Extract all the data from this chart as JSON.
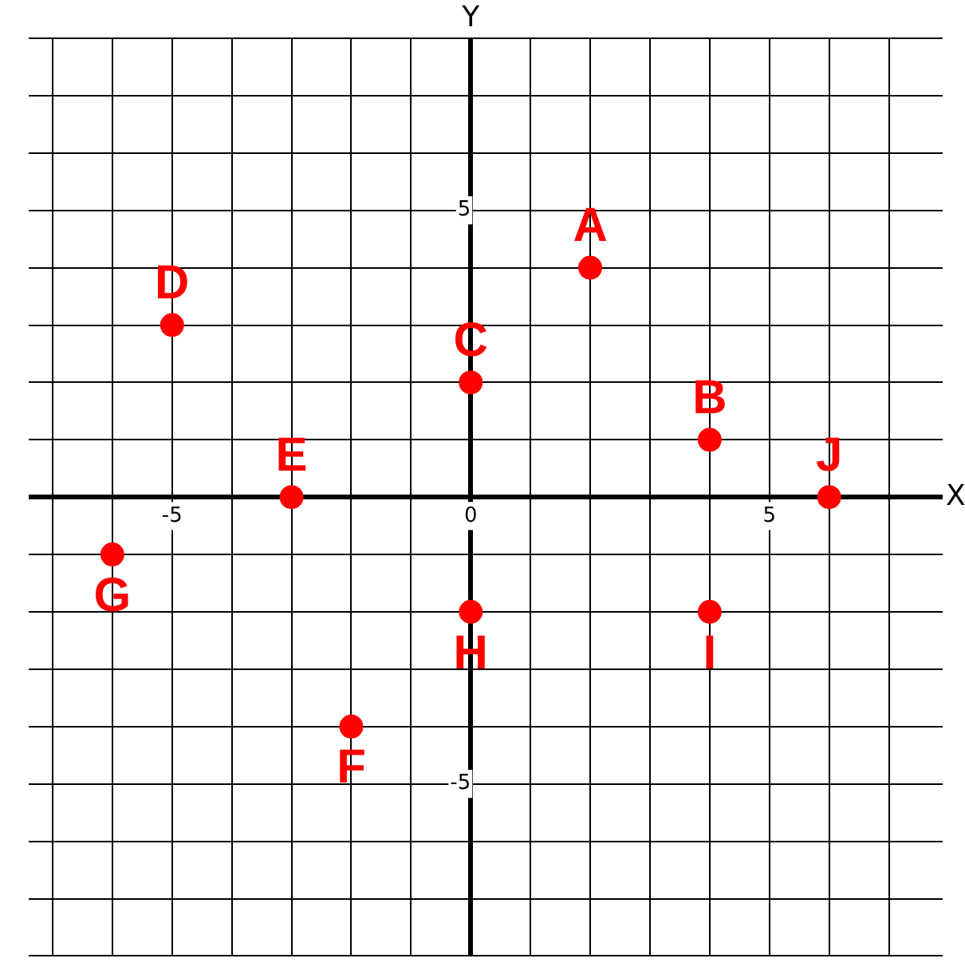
{
  "chart_data": {
    "type": "scatter",
    "xlabel": "X",
    "ylabel": "Y",
    "xlim": [
      -7.4,
      7.9
    ],
    "ylim": [
      -8,
      8
    ],
    "xticks": [
      {
        "value": -7,
        "label": null
      },
      {
        "value": -6,
        "label": null
      },
      {
        "value": -5,
        "label": "-5"
      },
      {
        "value": -4,
        "label": null
      },
      {
        "value": -3,
        "label": null
      },
      {
        "value": -2,
        "label": null
      },
      {
        "value": -1,
        "label": null
      },
      {
        "value": 0,
        "label": "0"
      },
      {
        "value": 1,
        "label": null
      },
      {
        "value": 2,
        "label": null
      },
      {
        "value": 3,
        "label": null
      },
      {
        "value": 4,
        "label": null
      },
      {
        "value": 5,
        "label": "5"
      },
      {
        "value": 6,
        "label": null
      },
      {
        "value": 7,
        "label": null
      }
    ],
    "yticks": [
      {
        "value": -8,
        "label": null
      },
      {
        "value": -7,
        "label": null
      },
      {
        "value": -6,
        "label": null
      },
      {
        "value": -5,
        "label": "-5"
      },
      {
        "value": -4,
        "label": null
      },
      {
        "value": -3,
        "label": null
      },
      {
        "value": -2,
        "label": null
      },
      {
        "value": -1,
        "label": null
      },
      {
        "value": 0,
        "label": null
      },
      {
        "value": 1,
        "label": null
      },
      {
        "value": 2,
        "label": null
      },
      {
        "value": 3,
        "label": null
      },
      {
        "value": 4,
        "label": null
      },
      {
        "value": 5,
        "label": "5"
      },
      {
        "value": 6,
        "label": null
      },
      {
        "value": 7,
        "label": null
      },
      {
        "value": 8,
        "label": null
      }
    ],
    "grid": true,
    "marker": "circle",
    "legend": false,
    "series": [
      {
        "name": "A",
        "color": "#ff0000",
        "x": [
          2
        ],
        "values": [
          4
        ]
      },
      {
        "name": "B",
        "color": "#ff0000",
        "x": [
          4
        ],
        "values": [
          1
        ]
      },
      {
        "name": "C",
        "color": "#ff0000",
        "x": [
          0
        ],
        "values": [
          2
        ]
      },
      {
        "name": "D",
        "color": "#ff0000",
        "x": [
          -5
        ],
        "values": [
          3
        ]
      },
      {
        "name": "E",
        "color": "#ff0000",
        "x": [
          -3
        ],
        "values": [
          0
        ]
      },
      {
        "name": "F",
        "color": "#ff0000",
        "x": [
          -2
        ],
        "values": [
          -4
        ]
      },
      {
        "name": "G",
        "color": "#ff0000",
        "x": [
          -6
        ],
        "values": [
          -1
        ]
      },
      {
        "name": "H",
        "color": "#ff0000",
        "x": [
          0
        ],
        "values": [
          -2
        ]
      },
      {
        "name": "I",
        "color": "#ff0000",
        "x": [
          4
        ],
        "values": [
          -2
        ]
      },
      {
        "name": "J",
        "color": "#ff0000",
        "x": [
          6
        ],
        "values": [
          0
        ]
      }
    ]
  }
}
